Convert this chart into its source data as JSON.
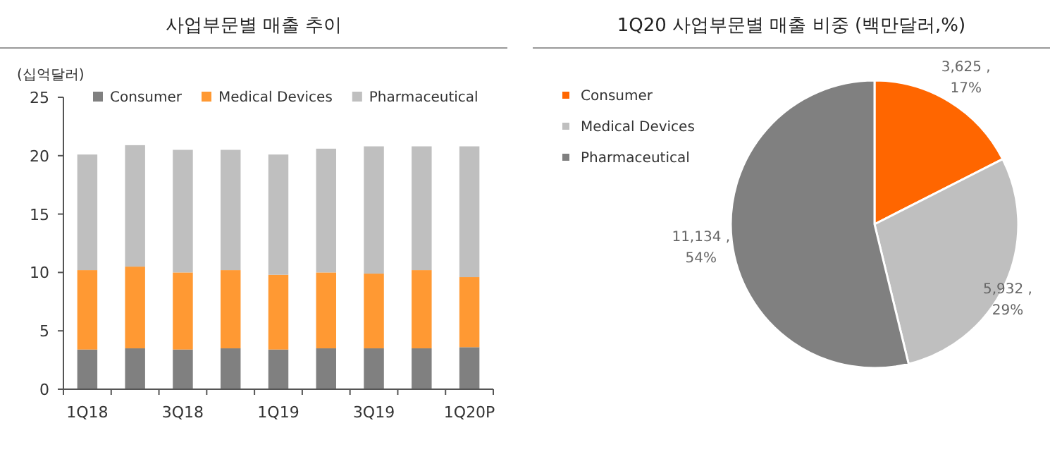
{
  "chart_data": [
    {
      "type": "bar",
      "title": "사업부문별 매출 추이",
      "ylabel": "(십억달러)",
      "stacked": true,
      "legend": "top",
      "grid": false,
      "categories": [
        "1Q18",
        null,
        "3Q18",
        null,
        "1Q19",
        null,
        "3Q19",
        null,
        "1Q20P"
      ],
      "ylim": [
        0,
        25
      ],
      "yticks": [
        0,
        5,
        10,
        15,
        20,
        25
      ],
      "series": [
        {
          "name": "Consumer",
          "color": "#808080",
          "values": [
            3.4,
            3.5,
            3.4,
            3.5,
            3.4,
            3.5,
            3.5,
            3.5,
            3.6
          ]
        },
        {
          "name": "Medical Devices",
          "color": "#ff9933",
          "values": [
            6.8,
            7.0,
            6.6,
            6.7,
            6.4,
            6.5,
            6.4,
            6.7,
            6.0
          ]
        },
        {
          "name": "Pharmaceutical",
          "color": "#bfbfbf",
          "values": [
            9.9,
            10.4,
            10.5,
            10.3,
            10.3,
            10.6,
            10.9,
            10.6,
            11.2
          ]
        }
      ]
    },
    {
      "type": "pie",
      "title": "1Q20 사업부문별 매출 비중 (백만달러,%)",
      "legend": "top left",
      "categories": [
        "Consumer",
        "Medical Devices",
        "Pharmaceutical"
      ],
      "values": [
        3625,
        5932,
        11134
      ],
      "colors": [
        "#ff6600",
        "#bfbfbf",
        "#808080"
      ],
      "value_labels": [
        "3,625 , 17%",
        "5,932 , 29%",
        "11,134 , 54%"
      ]
    }
  ]
}
